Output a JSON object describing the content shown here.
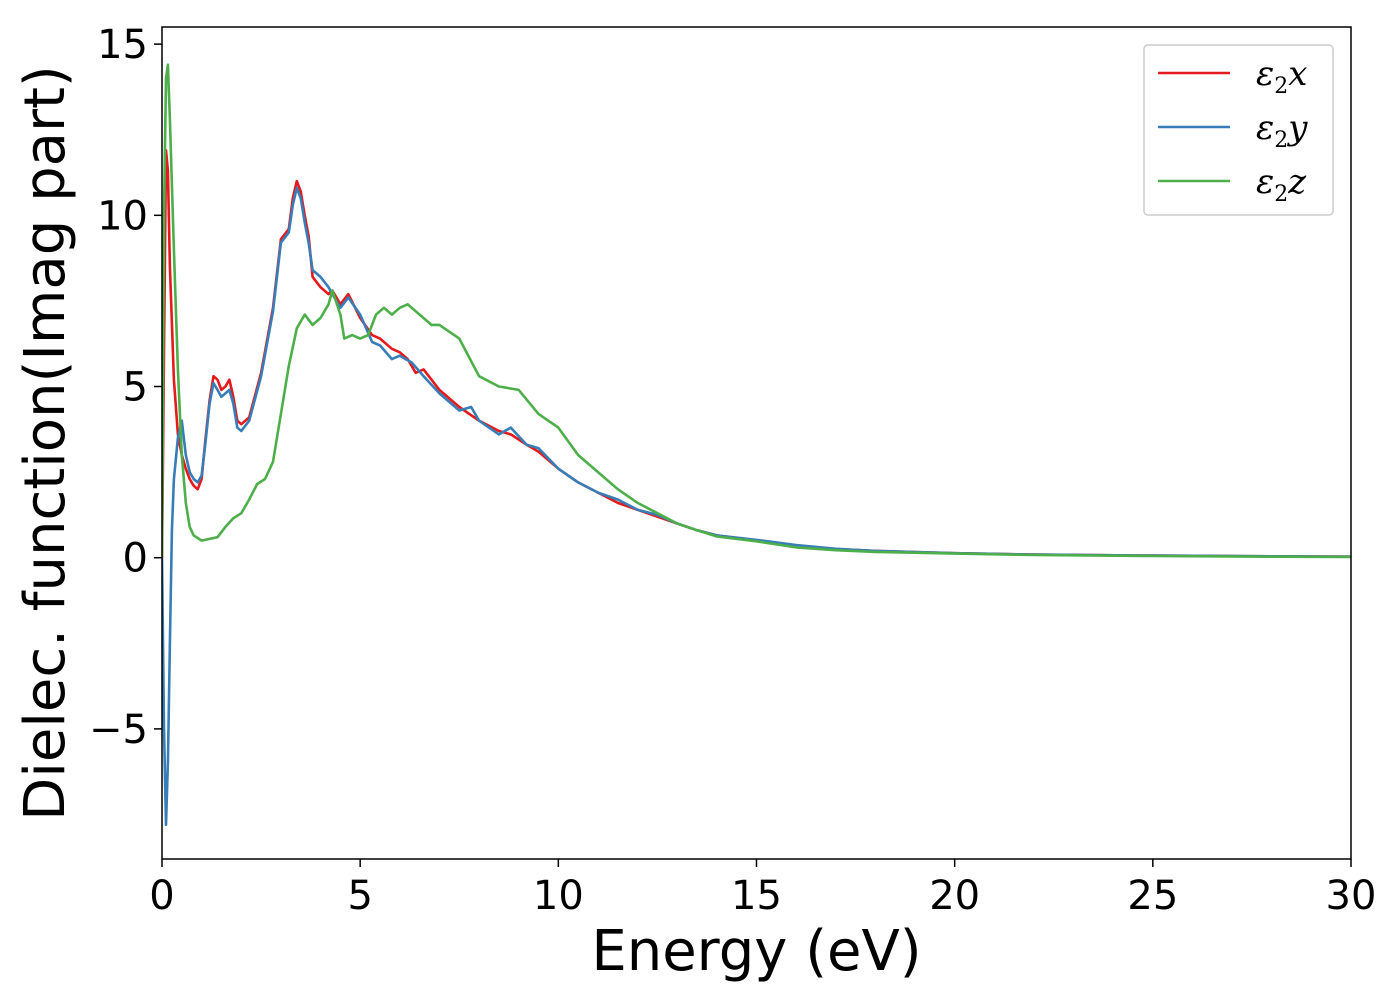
{
  "chart_data": {
    "type": "line",
    "xlabel": "Energy (eV)",
    "ylabel": "Dielec. function(Imag part)",
    "xlim": [
      0,
      30
    ],
    "ylim": [
      -8.8,
      15.5
    ],
    "xticks": [
      0,
      5,
      10,
      15,
      20,
      25,
      30
    ],
    "xtick_labels": [
      "0",
      "5",
      "10",
      "15",
      "20",
      "25",
      "30"
    ],
    "yticks": [
      -5,
      0,
      5,
      10,
      15
    ],
    "ytick_labels": [
      "−5",
      "0",
      "5",
      "10",
      "15"
    ],
    "grid": false,
    "legend_position": "top-right",
    "series": [
      {
        "name": "ε₂x",
        "legend_main": "ε",
        "legend_sub": "2",
        "legend_var": "x",
        "color": "#e41a1c",
        "points": [
          [
            0,
            0
          ],
          [
            0.05,
            6
          ],
          [
            0.1,
            11.9
          ],
          [
            0.15,
            11.3
          ],
          [
            0.2,
            8.5
          ],
          [
            0.3,
            5.2
          ],
          [
            0.4,
            3.6
          ],
          [
            0.5,
            3.0
          ],
          [
            0.6,
            2.6
          ],
          [
            0.7,
            2.3
          ],
          [
            0.8,
            2.1
          ],
          [
            0.9,
            2.0
          ],
          [
            1.0,
            2.3
          ],
          [
            1.1,
            3.5
          ],
          [
            1.2,
            4.6
          ],
          [
            1.3,
            5.3
          ],
          [
            1.4,
            5.2
          ],
          [
            1.5,
            4.9
          ],
          [
            1.6,
            5.0
          ],
          [
            1.7,
            5.2
          ],
          [
            1.8,
            4.7
          ],
          [
            1.9,
            4.0
          ],
          [
            2.0,
            3.9
          ],
          [
            2.2,
            4.1
          ],
          [
            2.5,
            5.4
          ],
          [
            2.8,
            7.3
          ],
          [
            3.0,
            9.3
          ],
          [
            3.2,
            9.6
          ],
          [
            3.3,
            10.5
          ],
          [
            3.4,
            11.0
          ],
          [
            3.5,
            10.7
          ],
          [
            3.6,
            10.0
          ],
          [
            3.7,
            9.4
          ],
          [
            3.8,
            8.2
          ],
          [
            4.0,
            7.9
          ],
          [
            4.2,
            7.7
          ],
          [
            4.3,
            7.8
          ],
          [
            4.5,
            7.4
          ],
          [
            4.7,
            7.7
          ],
          [
            5.0,
            7.0
          ],
          [
            5.3,
            6.5
          ],
          [
            5.5,
            6.4
          ],
          [
            5.8,
            6.1
          ],
          [
            6.0,
            6.0
          ],
          [
            6.2,
            5.8
          ],
          [
            6.4,
            5.4
          ],
          [
            6.6,
            5.5
          ],
          [
            7.0,
            4.9
          ],
          [
            7.5,
            4.4
          ],
          [
            8.0,
            4.0
          ],
          [
            8.5,
            3.7
          ],
          [
            8.8,
            3.6
          ],
          [
            9.2,
            3.3
          ],
          [
            9.5,
            3.1
          ],
          [
            10.0,
            2.6
          ],
          [
            10.5,
            2.2
          ],
          [
            11.0,
            1.9
          ],
          [
            11.5,
            1.6
          ],
          [
            12.0,
            1.4
          ],
          [
            12.5,
            1.2
          ],
          [
            13.0,
            1.0
          ],
          [
            13.5,
            0.8
          ],
          [
            14.0,
            0.65
          ],
          [
            15.0,
            0.5
          ],
          [
            16.0,
            0.35
          ],
          [
            17.0,
            0.25
          ],
          [
            18.0,
            0.2
          ],
          [
            20.0,
            0.13
          ],
          [
            22.0,
            0.09
          ],
          [
            25.0,
            0.06
          ],
          [
            28.0,
            0.04
          ],
          [
            30.0,
            0.03
          ]
        ]
      },
      {
        "name": "ε₂y",
        "legend_main": "ε",
        "legend_sub": "2",
        "legend_var": "y",
        "color": "#377eb8",
        "points": [
          [
            0,
            0
          ],
          [
            0.05,
            -5
          ],
          [
            0.1,
            -7.8
          ],
          [
            0.15,
            -6
          ],
          [
            0.2,
            -2.5
          ],
          [
            0.25,
            0.8
          ],
          [
            0.3,
            2.3
          ],
          [
            0.4,
            3.5
          ],
          [
            0.5,
            4.0
          ],
          [
            0.6,
            3.0
          ],
          [
            0.7,
            2.5
          ],
          [
            0.8,
            2.3
          ],
          [
            0.9,
            2.2
          ],
          [
            1.0,
            2.4
          ],
          [
            1.1,
            3.4
          ],
          [
            1.2,
            4.5
          ],
          [
            1.3,
            5.1
          ],
          [
            1.4,
            4.9
          ],
          [
            1.5,
            4.7
          ],
          [
            1.6,
            4.8
          ],
          [
            1.7,
            4.9
          ],
          [
            1.8,
            4.5
          ],
          [
            1.9,
            3.8
          ],
          [
            2.0,
            3.7
          ],
          [
            2.2,
            4.0
          ],
          [
            2.5,
            5.3
          ],
          [
            2.8,
            7.2
          ],
          [
            3.0,
            9.2
          ],
          [
            3.2,
            9.5
          ],
          [
            3.3,
            10.3
          ],
          [
            3.4,
            10.8
          ],
          [
            3.5,
            10.5
          ],
          [
            3.6,
            9.8
          ],
          [
            3.7,
            9.2
          ],
          [
            3.8,
            8.4
          ],
          [
            4.0,
            8.2
          ],
          [
            4.2,
            7.9
          ],
          [
            4.3,
            7.7
          ],
          [
            4.5,
            7.3
          ],
          [
            4.7,
            7.6
          ],
          [
            5.0,
            7.1
          ],
          [
            5.3,
            6.3
          ],
          [
            5.5,
            6.2
          ],
          [
            5.8,
            5.8
          ],
          [
            6.0,
            5.9
          ],
          [
            6.3,
            5.7
          ],
          [
            6.6,
            5.3
          ],
          [
            7.0,
            4.8
          ],
          [
            7.5,
            4.3
          ],
          [
            7.8,
            4.4
          ],
          [
            8.0,
            4.0
          ],
          [
            8.5,
            3.6
          ],
          [
            8.8,
            3.8
          ],
          [
            9.2,
            3.3
          ],
          [
            9.5,
            3.2
          ],
          [
            10.0,
            2.6
          ],
          [
            10.5,
            2.2
          ],
          [
            11.0,
            1.9
          ],
          [
            11.5,
            1.7
          ],
          [
            12.0,
            1.4
          ],
          [
            12.5,
            1.25
          ],
          [
            13.0,
            1.0
          ],
          [
            13.5,
            0.8
          ],
          [
            14.0,
            0.65
          ],
          [
            15.0,
            0.52
          ],
          [
            16.0,
            0.37
          ],
          [
            17.0,
            0.26
          ],
          [
            18.0,
            0.2
          ],
          [
            20.0,
            0.13
          ],
          [
            22.0,
            0.09
          ],
          [
            25.0,
            0.06
          ],
          [
            28.0,
            0.04
          ],
          [
            30.0,
            0.03
          ]
        ]
      },
      {
        "name": "ε₂z",
        "legend_main": "ε",
        "legend_sub": "2",
        "legend_var": "z",
        "color": "#4daf4a",
        "points": [
          [
            0,
            0
          ],
          [
            0.05,
            10
          ],
          [
            0.1,
            14.0
          ],
          [
            0.15,
            14.4
          ],
          [
            0.2,
            12.8
          ],
          [
            0.3,
            9.0
          ],
          [
            0.4,
            5.5
          ],
          [
            0.5,
            3.0
          ],
          [
            0.6,
            1.6
          ],
          [
            0.7,
            0.9
          ],
          [
            0.8,
            0.65
          ],
          [
            1.0,
            0.5
          ],
          [
            1.2,
            0.55
          ],
          [
            1.4,
            0.6
          ],
          [
            1.6,
            0.9
          ],
          [
            1.8,
            1.15
          ],
          [
            2.0,
            1.3
          ],
          [
            2.2,
            1.7
          ],
          [
            2.4,
            2.15
          ],
          [
            2.6,
            2.3
          ],
          [
            2.8,
            2.8
          ],
          [
            3.0,
            4.2
          ],
          [
            3.2,
            5.6
          ],
          [
            3.4,
            6.7
          ],
          [
            3.6,
            7.1
          ],
          [
            3.8,
            6.8
          ],
          [
            4.0,
            7.0
          ],
          [
            4.2,
            7.4
          ],
          [
            4.3,
            7.8
          ],
          [
            4.5,
            7.1
          ],
          [
            4.6,
            6.4
          ],
          [
            4.8,
            6.5
          ],
          [
            5.0,
            6.4
          ],
          [
            5.2,
            6.5
          ],
          [
            5.4,
            7.1
          ],
          [
            5.6,
            7.3
          ],
          [
            5.8,
            7.1
          ],
          [
            6.0,
            7.3
          ],
          [
            6.2,
            7.4
          ],
          [
            6.5,
            7.1
          ],
          [
            6.8,
            6.8
          ],
          [
            7.0,
            6.8
          ],
          [
            7.5,
            6.4
          ],
          [
            8.0,
            5.3
          ],
          [
            8.5,
            5.0
          ],
          [
            9.0,
            4.9
          ],
          [
            9.5,
            4.2
          ],
          [
            10.0,
            3.8
          ],
          [
            10.5,
            3.0
          ],
          [
            11.0,
            2.5
          ],
          [
            11.5,
            2.0
          ],
          [
            12.0,
            1.6
          ],
          [
            12.5,
            1.3
          ],
          [
            13.0,
            1.0
          ],
          [
            13.5,
            0.8
          ],
          [
            14.0,
            0.62
          ],
          [
            15.0,
            0.48
          ],
          [
            16.0,
            0.3
          ],
          [
            17.0,
            0.22
          ],
          [
            18.0,
            0.17
          ],
          [
            20.0,
            0.12
          ],
          [
            22.0,
            0.08
          ],
          [
            25.0,
            0.05
          ],
          [
            28.0,
            0.03
          ],
          [
            30.0,
            0.02
          ]
        ]
      }
    ]
  }
}
